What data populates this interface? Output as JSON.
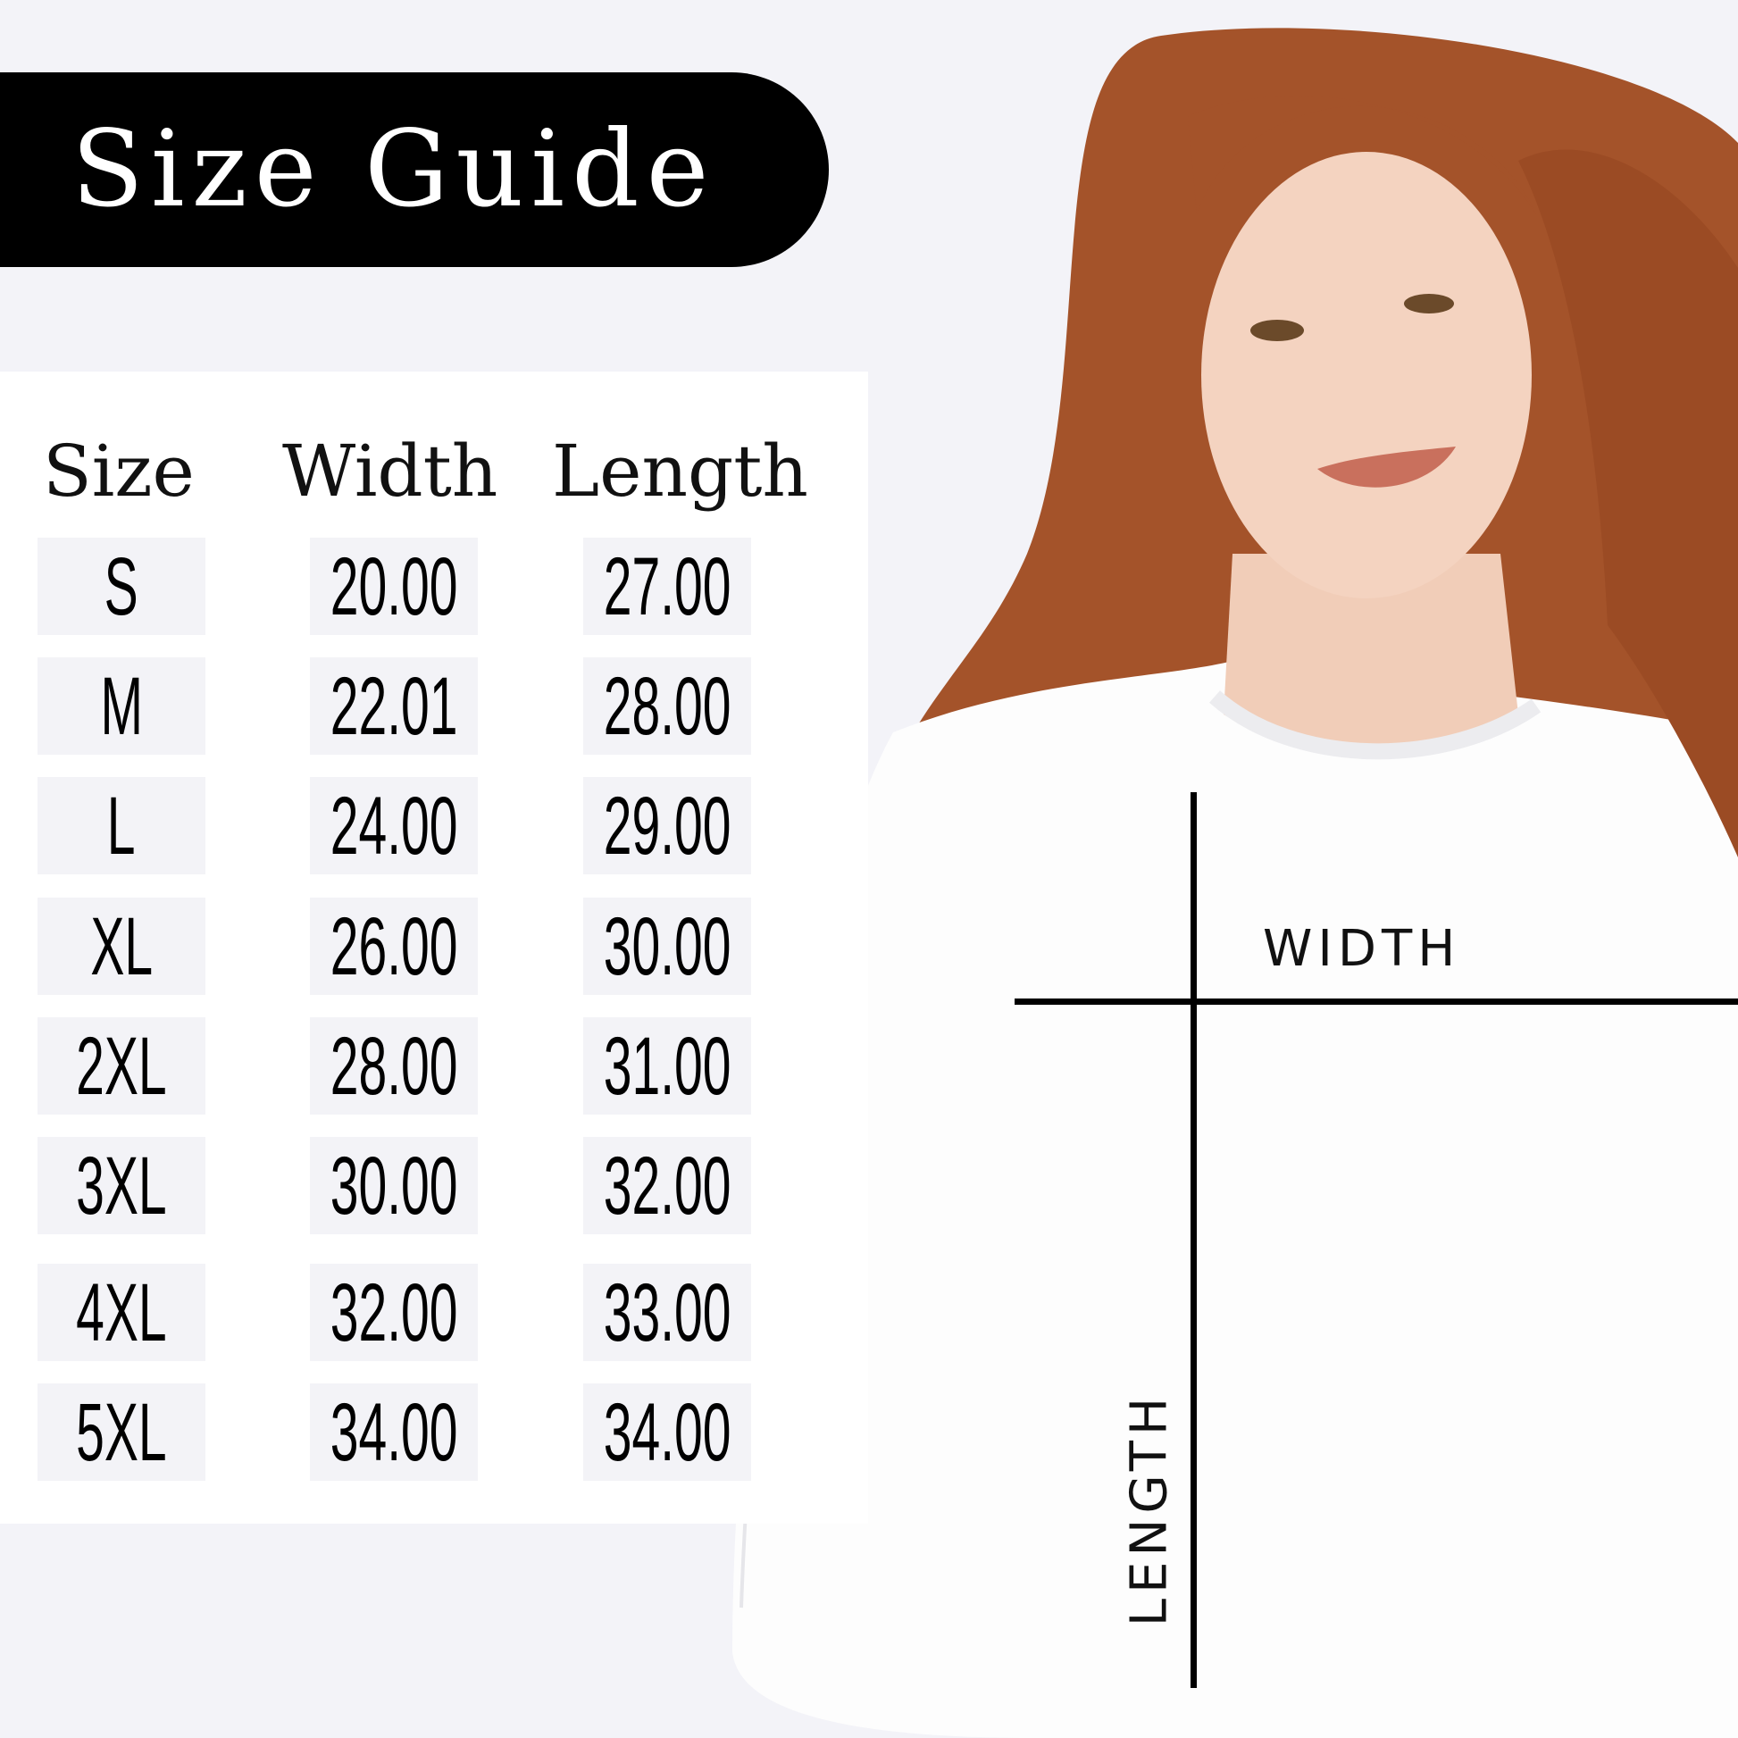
{
  "title": "Size Guide",
  "table": {
    "headers": [
      "Size",
      "Width",
      "Length"
    ],
    "rows": [
      {
        "size": "S",
        "width": "20.00",
        "length": "27.00"
      },
      {
        "size": "M",
        "width": "22.01",
        "length": "28.00"
      },
      {
        "size": "L",
        "width": "24.00",
        "length": "29.00"
      },
      {
        "size": "XL",
        "width": "26.00",
        "length": "30.00"
      },
      {
        "size": "2XL",
        "width": "28.00",
        "length": "31.00"
      },
      {
        "size": "3XL",
        "width": "30.00",
        "length": "32.00"
      },
      {
        "size": "4XL",
        "width": "32.00",
        "length": "33.00"
      },
      {
        "size": "5XL",
        "width": "34.00",
        "length": "34.00"
      }
    ]
  },
  "diagram": {
    "width_label": "WIDTH",
    "length_label": "LENGTH"
  },
  "colors": {
    "background": "#f3f3f8",
    "banner": "#000000",
    "cell": "#f3f3f7",
    "hair": "#a4532a",
    "sweatshirt": "#ffffff"
  }
}
